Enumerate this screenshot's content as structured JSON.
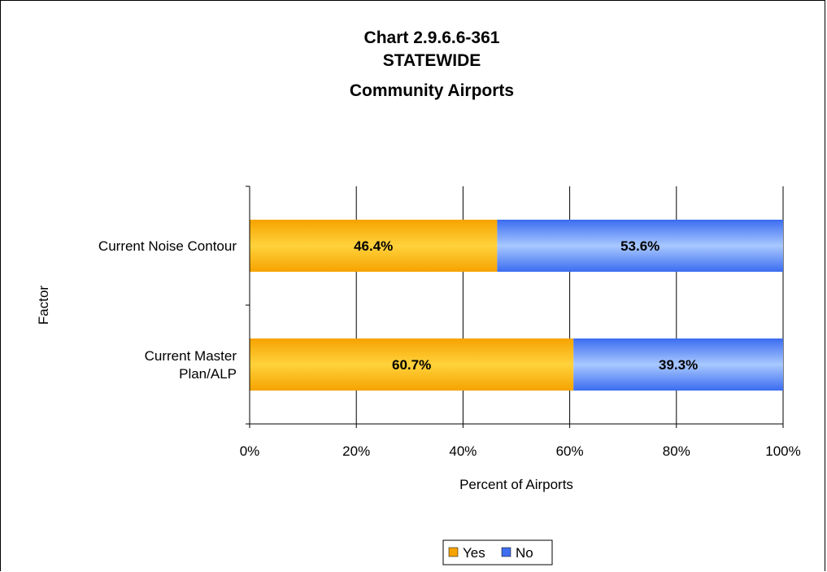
{
  "chart_data": {
    "type": "bar",
    "orientation": "horizontal",
    "stacked": "percent",
    "title": [
      "Chart 2.9.6.6-361",
      "STATEWIDE",
      "Community Airports"
    ],
    "xlabel": "Percent of Airports",
    "ylabel": "Factor",
    "categories": [
      [
        "Current Noise Contour"
      ],
      [
        "Current Master",
        "Plan/ALP"
      ]
    ],
    "xticks": [
      "0%",
      "20%",
      "40%",
      "60%",
      "80%",
      "100%"
    ],
    "xlim": [
      0,
      100
    ],
    "grid": "vertical",
    "legend_position": "bottom",
    "series": [
      {
        "name": "Yes",
        "values": [
          46.4,
          60.7
        ],
        "labels": [
          "46.4%",
          "60.7%"
        ],
        "color": "#f5a300"
      },
      {
        "name": "No",
        "values": [
          53.6,
          39.3
        ],
        "labels": [
          "53.6%",
          "39.3%"
        ],
        "color": "#3f6ff0"
      }
    ]
  }
}
